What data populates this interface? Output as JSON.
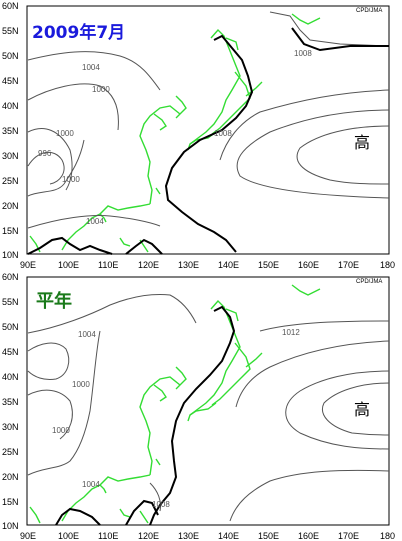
{
  "top_panel": {
    "title": "2009年7月",
    "title_color": "#1a1adc",
    "credit": "CPD/JMA",
    "high_label": "高",
    "contour_labels": [
      "1004",
      "1000",
      "1000",
      "996",
      "1000",
      "1004",
      "1008",
      "1008"
    ]
  },
  "bottom_panel": {
    "title": "平年",
    "title_color": "#1a7a1a",
    "credit": "CPD/JMA",
    "high_label": "高",
    "contour_labels": [
      "1004",
      "1000",
      "1000",
      "1004",
      "1008",
      "1012"
    ]
  },
  "axes": {
    "lat_labels": [
      "60N",
      "55N",
      "50N",
      "45N",
      "40N",
      "35N",
      "30N",
      "25N",
      "20N",
      "15N",
      "10N"
    ],
    "lon_labels": [
      "90E",
      "100E",
      "110E",
      "120E",
      "130E",
      "140E",
      "150E",
      "160E",
      "170E",
      "180"
    ]
  },
  "colors": {
    "coastline": "#33dd33",
    "contour": "#555555",
    "highlight_contour": "#000000"
  }
}
